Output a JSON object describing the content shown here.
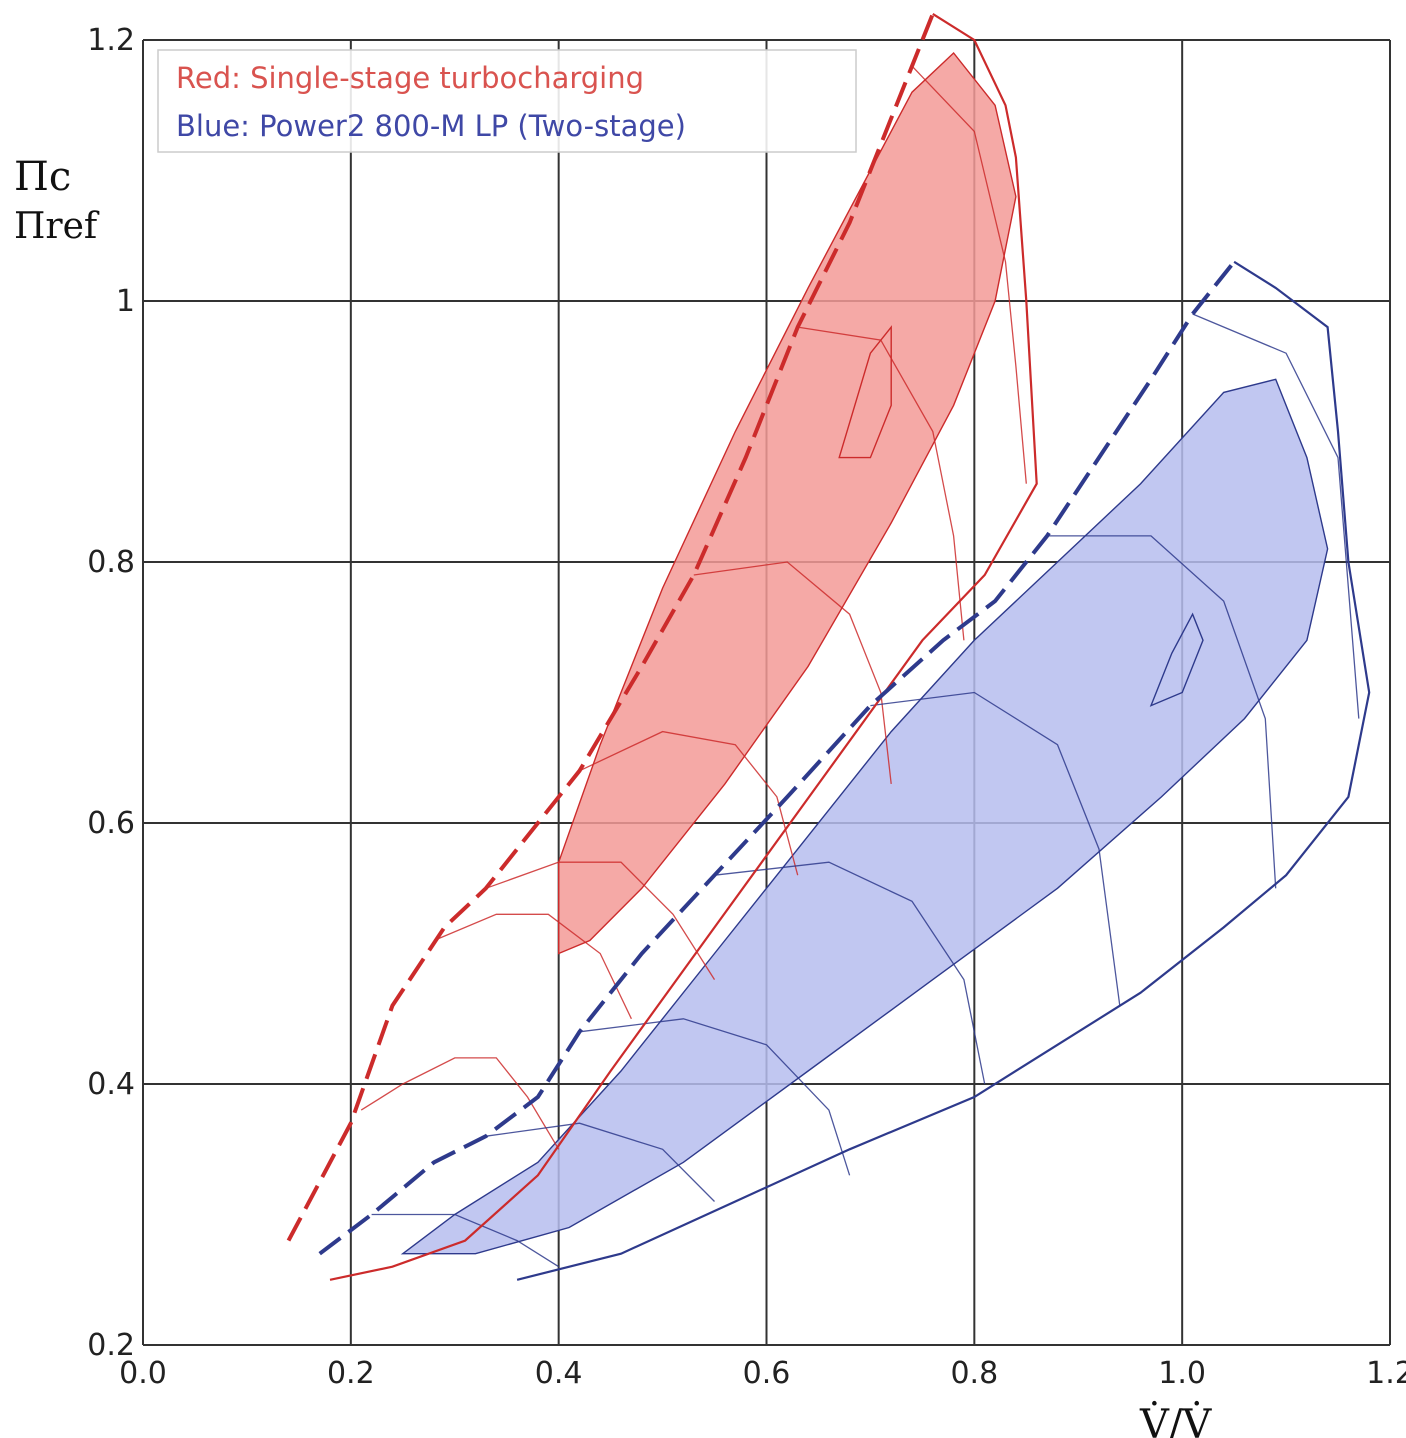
{
  "chart_data": {
    "type": "line",
    "title": "",
    "xlabel": "V̇/V̇",
    "ylabel_top": "Πc",
    "ylabel_bottom": "Πref",
    "xlim": [
      0.0,
      1.2
    ],
    "ylim": [
      0.2,
      1.2
    ],
    "x_ticks": [
      "0.0",
      "0.2",
      "0.4",
      "0.6",
      "0.8",
      "1.0",
      "1.2"
    ],
    "y_ticks": [
      "0.2",
      "0.4",
      "0.6",
      "0.8",
      "1",
      "1.2"
    ],
    "grid": true,
    "legend": {
      "placement": "top-left",
      "entries": [
        {
          "label": "Red: Single-stage turbocharging",
          "color": "#d9534f"
        },
        {
          "label": "Blue: Power2 800-M LP (Two-stage)",
          "color": "#3f48a6"
        }
      ]
    },
    "series": [
      {
        "name": "Red: Single-stage turbocharging",
        "color": "#cc2b2b",
        "fill_color": "#f39a96",
        "surge_line": [
          [
            0.14,
            0.28
          ],
          [
            0.2,
            0.37
          ],
          [
            0.24,
            0.46
          ],
          [
            0.29,
            0.52
          ],
          [
            0.33,
            0.55
          ],
          [
            0.38,
            0.6
          ],
          [
            0.42,
            0.64
          ],
          [
            0.48,
            0.72
          ],
          [
            0.53,
            0.79
          ],
          [
            0.58,
            0.88
          ],
          [
            0.63,
            0.98
          ],
          [
            0.68,
            1.06
          ],
          [
            0.74,
            1.18
          ],
          [
            0.76,
            1.22
          ]
        ],
        "choke_line": [
          [
            0.76,
            1.22
          ],
          [
            0.8,
            1.2
          ],
          [
            0.83,
            1.15
          ],
          [
            0.84,
            1.11
          ],
          [
            0.85,
            1.0
          ],
          [
            0.86,
            0.86
          ],
          [
            0.81,
            0.79
          ],
          [
            0.75,
            0.74
          ],
          [
            0.65,
            0.63
          ],
          [
            0.55,
            0.52
          ],
          [
            0.45,
            0.41
          ],
          [
            0.38,
            0.33
          ],
          [
            0.31,
            0.28
          ],
          [
            0.24,
            0.26
          ],
          [
            0.18,
            0.25
          ]
        ],
        "efficiency_island_outer": [
          [
            0.4,
            0.5
          ],
          [
            0.4,
            0.57
          ],
          [
            0.44,
            0.66
          ],
          [
            0.5,
            0.78
          ],
          [
            0.57,
            0.9
          ],
          [
            0.64,
            1.01
          ],
          [
            0.7,
            1.1
          ],
          [
            0.74,
            1.16
          ],
          [
            0.78,
            1.19
          ],
          [
            0.82,
            1.15
          ],
          [
            0.84,
            1.08
          ],
          [
            0.82,
            1.0
          ],
          [
            0.78,
            0.92
          ],
          [
            0.72,
            0.83
          ],
          [
            0.64,
            0.72
          ],
          [
            0.56,
            0.63
          ],
          [
            0.48,
            0.55
          ],
          [
            0.43,
            0.51
          ]
        ],
        "efficiency_island_inner": [
          [
            0.67,
            0.88
          ],
          [
            0.7,
            0.96
          ],
          [
            0.72,
            0.98
          ],
          [
            0.72,
            0.92
          ],
          [
            0.7,
            0.88
          ]
        ],
        "speed_lines": [
          [
            [
              0.21,
              0.38
            ],
            [
              0.25,
              0.4
            ],
            [
              0.3,
              0.42
            ],
            [
              0.34,
              0.42
            ],
            [
              0.37,
              0.39
            ],
            [
              0.4,
              0.35
            ]
          ],
          [
            [
              0.28,
              0.51
            ],
            [
              0.34,
              0.53
            ],
            [
              0.39,
              0.53
            ],
            [
              0.44,
              0.5
            ],
            [
              0.47,
              0.45
            ]
          ],
          [
            [
              0.33,
              0.55
            ],
            [
              0.4,
              0.57
            ],
            [
              0.46,
              0.57
            ],
            [
              0.51,
              0.53
            ],
            [
              0.55,
              0.48
            ]
          ],
          [
            [
              0.42,
              0.64
            ],
            [
              0.5,
              0.67
            ],
            [
              0.57,
              0.66
            ],
            [
              0.61,
              0.62
            ],
            [
              0.63,
              0.56
            ]
          ],
          [
            [
              0.53,
              0.79
            ],
            [
              0.62,
              0.8
            ],
            [
              0.68,
              0.76
            ],
            [
              0.71,
              0.7
            ],
            [
              0.72,
              0.63
            ]
          ],
          [
            [
              0.63,
              0.98
            ],
            [
              0.71,
              0.97
            ],
            [
              0.76,
              0.9
            ],
            [
              0.78,
              0.82
            ],
            [
              0.79,
              0.74
            ]
          ],
          [
            [
              0.74,
              1.18
            ],
            [
              0.8,
              1.13
            ],
            [
              0.83,
              1.03
            ],
            [
              0.84,
              0.95
            ],
            [
              0.85,
              0.86
            ]
          ]
        ]
      },
      {
        "name": "Blue: Power2 800-M LP (Two-stage)",
        "color": "#2e3a8c",
        "fill_color": "#b6bdee",
        "surge_line": [
          [
            0.17,
            0.27
          ],
          [
            0.22,
            0.3
          ],
          [
            0.28,
            0.34
          ],
          [
            0.33,
            0.36
          ],
          [
            0.38,
            0.39
          ],
          [
            0.42,
            0.44
          ],
          [
            0.48,
            0.5
          ],
          [
            0.55,
            0.56
          ],
          [
            0.62,
            0.62
          ],
          [
            0.7,
            0.69
          ],
          [
            0.77,
            0.74
          ],
          [
            0.82,
            0.77
          ],
          [
            0.87,
            0.82
          ],
          [
            0.92,
            0.88
          ],
          [
            0.97,
            0.94
          ],
          [
            1.01,
            0.99
          ],
          [
            1.05,
            1.03
          ]
        ],
        "choke_line": [
          [
            1.05,
            1.03
          ],
          [
            1.09,
            1.01
          ],
          [
            1.14,
            0.98
          ],
          [
            1.15,
            0.9
          ],
          [
            1.16,
            0.8
          ],
          [
            1.18,
            0.7
          ],
          [
            1.16,
            0.62
          ],
          [
            1.1,
            0.56
          ],
          [
            1.04,
            0.52
          ],
          [
            0.96,
            0.47
          ],
          [
            0.88,
            0.43
          ],
          [
            0.8,
            0.39
          ],
          [
            0.68,
            0.35
          ],
          [
            0.57,
            0.31
          ],
          [
            0.46,
            0.27
          ],
          [
            0.36,
            0.25
          ]
        ],
        "efficiency_island_outer": [
          [
            0.25,
            0.27
          ],
          [
            0.3,
            0.3
          ],
          [
            0.38,
            0.34
          ],
          [
            0.46,
            0.41
          ],
          [
            0.55,
            0.5
          ],
          [
            0.63,
            0.58
          ],
          [
            0.72,
            0.67
          ],
          [
            0.8,
            0.74
          ],
          [
            0.88,
            0.8
          ],
          [
            0.96,
            0.86
          ],
          [
            1.04,
            0.93
          ],
          [
            1.09,
            0.94
          ],
          [
            1.12,
            0.88
          ],
          [
            1.14,
            0.81
          ],
          [
            1.12,
            0.74
          ],
          [
            1.06,
            0.68
          ],
          [
            0.98,
            0.62
          ],
          [
            0.88,
            0.55
          ],
          [
            0.76,
            0.48
          ],
          [
            0.64,
            0.41
          ],
          [
            0.52,
            0.34
          ],
          [
            0.41,
            0.29
          ],
          [
            0.32,
            0.27
          ]
        ],
        "efficiency_island_inner": [
          [
            0.97,
            0.69
          ],
          [
            0.99,
            0.73
          ],
          [
            1.01,
            0.76
          ],
          [
            1.02,
            0.74
          ],
          [
            1.0,
            0.7
          ]
        ],
        "speed_lines": [
          [
            [
              0.22,
              0.3
            ],
            [
              0.3,
              0.3
            ],
            [
              0.36,
              0.28
            ],
            [
              0.4,
              0.26
            ]
          ],
          [
            [
              0.33,
              0.36
            ],
            [
              0.42,
              0.37
            ],
            [
              0.5,
              0.35
            ],
            [
              0.55,
              0.31
            ]
          ],
          [
            [
              0.42,
              0.44
            ],
            [
              0.52,
              0.45
            ],
            [
              0.6,
              0.43
            ],
            [
              0.66,
              0.38
            ],
            [
              0.68,
              0.33
            ]
          ],
          [
            [
              0.55,
              0.56
            ],
            [
              0.66,
              0.57
            ],
            [
              0.74,
              0.54
            ],
            [
              0.79,
              0.48
            ],
            [
              0.81,
              0.4
            ]
          ],
          [
            [
              0.7,
              0.69
            ],
            [
              0.8,
              0.7
            ],
            [
              0.88,
              0.66
            ],
            [
              0.92,
              0.58
            ],
            [
              0.94,
              0.46
            ]
          ],
          [
            [
              0.87,
              0.82
            ],
            [
              0.97,
              0.82
            ],
            [
              1.04,
              0.77
            ],
            [
              1.08,
              0.68
            ],
            [
              1.09,
              0.55
            ]
          ],
          [
            [
              1.01,
              0.99
            ],
            [
              1.1,
              0.96
            ],
            [
              1.15,
              0.88
            ],
            [
              1.16,
              0.78
            ],
            [
              1.17,
              0.68
            ]
          ]
        ]
      }
    ]
  }
}
